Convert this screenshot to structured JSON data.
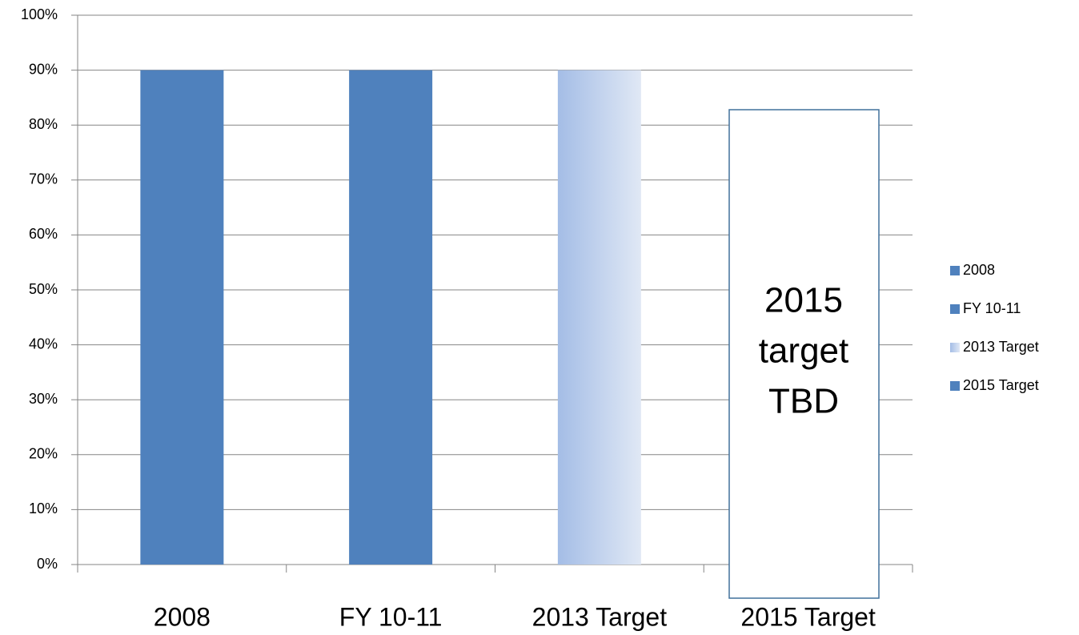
{
  "chart_data": {
    "type": "bar",
    "categories": [
      "2008",
      "FY 10-11",
      "2013 Target",
      "2015 Target"
    ],
    "series": [
      {
        "name": "2008",
        "color": "#4f81bd",
        "values": [
          90,
          null,
          null,
          null
        ]
      },
      {
        "name": "FY 10-11",
        "color": "#4f81bd",
        "values": [
          null,
          90,
          null,
          null
        ]
      },
      {
        "name": "2013 Target",
        "color": "#a4bde6",
        "gradient": [
          "#a4bde6",
          "#e0e8f5"
        ],
        "values": [
          null,
          null,
          90,
          null
        ]
      },
      {
        "name": "2015 Target",
        "color": "#4f81bd",
        "values": [
          null,
          null,
          null,
          null
        ]
      }
    ],
    "ylim": [
      0,
      100
    ],
    "yticks": [
      {
        "value": 0,
        "label": "0%"
      },
      {
        "value": 10,
        "label": "10%"
      },
      {
        "value": 20,
        "label": "20%"
      },
      {
        "value": 30,
        "label": "30%"
      },
      {
        "value": 40,
        "label": "40%"
      },
      {
        "value": 50,
        "label": "50%"
      },
      {
        "value": 60,
        "label": "60%"
      },
      {
        "value": 70,
        "label": "70%"
      },
      {
        "value": 80,
        "label": "80%"
      },
      {
        "value": 90,
        "label": "90%"
      },
      {
        "value": 100,
        "label": "100%"
      }
    ],
    "grid": true,
    "legend": "right",
    "annotation": [
      "2015",
      "target",
      "TBD"
    ]
  }
}
